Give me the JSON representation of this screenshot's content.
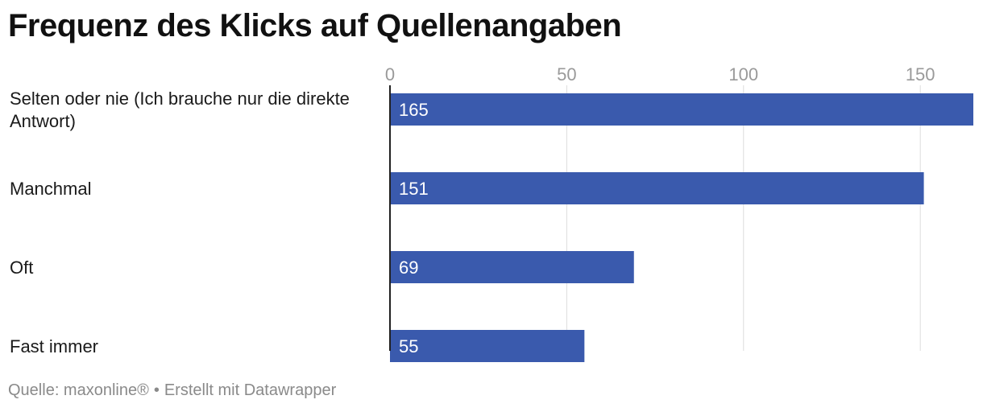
{
  "chart_data": {
    "type": "bar",
    "orientation": "horizontal",
    "title": "Frequenz des Klicks auf Quellenangaben",
    "categories": [
      [
        "Selten oder nie (Ich brauche nur die direkte",
        "Antwort)"
      ],
      [
        "Manchmal"
      ],
      [
        "Oft"
      ],
      [
        "Fast immer"
      ]
    ],
    "values": [
      165,
      151,
      69,
      55
    ],
    "xlim": [
      0,
      165
    ],
    "xticks": [
      0,
      50,
      100,
      150
    ],
    "grid": true,
    "bar_color": "#3a5aad",
    "label_color": "#ffffff"
  },
  "footer": {
    "source": "Quelle: maxonline®",
    "separator": "•",
    "credit": "Erstellt mit Datawrapper"
  }
}
